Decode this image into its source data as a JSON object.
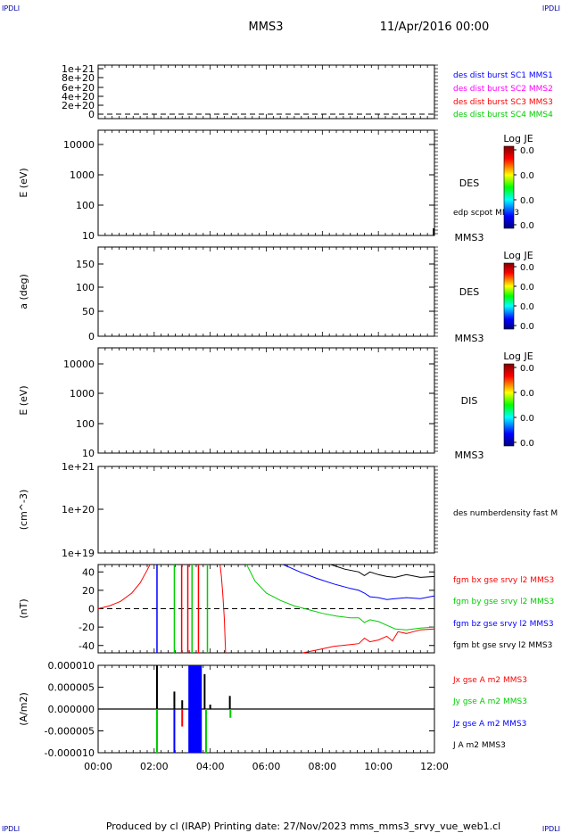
{
  "corner_labels": {
    "tl": "IPDLI",
    "tr": "IPDLI",
    "bl": "IPDLI",
    "br": "IPDLI"
  },
  "title": "MMS3",
  "date": "11/Apr/2016 00:00",
  "footer": "Produced by cl (IRAP)   Printing date: 27/Nov/2023   mms_mms3_srvy_vue_web1.cl",
  "colors": {
    "mms1": "#0000ff",
    "mms2": "#ff00ff",
    "mms3": "#ff0000",
    "mms4": "#00cc00",
    "black": "#000000"
  },
  "chart_data": [
    {
      "type": "line",
      "name": "panel-burst",
      "yticks": [
        "1e+21",
        "8e+20",
        "6e+20",
        "4e+20",
        "2e+20",
        "0"
      ],
      "legend": [
        "des dist burst SC1 MMS1",
        "des dist burst SC2 MMS2",
        "des dist burst SC3 MMS3",
        "des dist burst SC4 MMS4"
      ],
      "legend_colors": [
        "#0000ff",
        "#ff00ff",
        "#ff0000",
        "#00cc00"
      ]
    },
    {
      "type": "heatmap",
      "name": "panel-des-energy",
      "ylabel": "E (eV)",
      "yticks": [
        "10000",
        "1000",
        "100",
        "10"
      ],
      "side_label": "DES",
      "sc_label": "MMS3",
      "extra_label": "edp scpot MMS3",
      "colorbar": {
        "title": "Log JE",
        "ticks": [
          "0.0",
          "0.0",
          "0.0",
          "0.0"
        ]
      }
    },
    {
      "type": "heatmap",
      "name": "panel-des-pitch",
      "ylabel": "a (deg)",
      "yticks": [
        "150",
        "100",
        "50",
        "0"
      ],
      "side_label": "DES",
      "sc_label": "MMS3",
      "colorbar": {
        "title": "Log JE",
        "ticks": [
          "0.0",
          "0.0",
          "0.0",
          "0.0"
        ]
      }
    },
    {
      "type": "heatmap",
      "name": "panel-dis-energy",
      "ylabel": "E (eV)",
      "yticks": [
        "10000",
        "1000",
        "100",
        "10"
      ],
      "side_label": "DIS",
      "sc_label": "MMS3",
      "colorbar": {
        "title": "Log JE",
        "ticks": [
          "0.0",
          "0.0",
          "0.0",
          "0.0"
        ]
      }
    },
    {
      "type": "line",
      "name": "panel-density",
      "ylabel": "(cm^-3)",
      "yticks": [
        "1e+21",
        "1e+20",
        "1e+19"
      ],
      "legend": [
        "des numberdensity fast M"
      ]
    },
    {
      "type": "line",
      "name": "panel-fgm",
      "ylabel": "(nT)",
      "yticks": [
        "40",
        "20",
        "0",
        "-20",
        "-40"
      ],
      "ylim": [
        -48,
        48
      ],
      "xlim": [
        0,
        12
      ],
      "legend": [
        "fgm bx gse srvy l2 MMS3",
        "fgm by gse srvy l2 MMS3",
        "fgm bz gse srvy l2 MMS3",
        "fgm bt gse srvy l2 MMS3"
      ],
      "legend_colors": [
        "#ff0000",
        "#00cc00",
        "#0000ff",
        "#000000"
      ],
      "series": [
        {
          "color": "#ff0000",
          "points": [
            [
              0,
              0
            ],
            [
              0.4,
              3
            ],
            [
              0.8,
              8
            ],
            [
              1.2,
              17
            ],
            [
              1.5,
              28
            ],
            [
              1.75,
              42
            ],
            [
              1.85,
              48
            ]
          ]
        },
        {
          "color": "#ff0000",
          "points": [
            [
              4.35,
              48
            ],
            [
              4.4,
              35
            ],
            [
              4.45,
              15
            ],
            [
              4.5,
              -10
            ],
            [
              4.55,
              -48
            ]
          ]
        },
        {
          "color": "#00cc00",
          "points": [
            [
              5.3,
              48
            ],
            [
              5.6,
              30
            ],
            [
              6,
              17
            ],
            [
              6.5,
              9
            ],
            [
              7,
              3
            ],
            [
              7.5,
              -1
            ],
            [
              8,
              -5
            ],
            [
              8.5,
              -8
            ],
            [
              9,
              -10
            ],
            [
              9.3,
              -10
            ],
            [
              9.5,
              -15
            ],
            [
              9.7,
              -12
            ],
            [
              10,
              -14
            ],
            [
              10.3,
              -18
            ],
            [
              10.6,
              -22
            ],
            [
              11,
              -23
            ],
            [
              11.5,
              -21
            ],
            [
              12,
              -20
            ]
          ]
        },
        {
          "color": "#0000ff",
          "points": [
            [
              6.6,
              48
            ],
            [
              7.2,
              40
            ],
            [
              7.8,
              33
            ],
            [
              8.4,
              27
            ],
            [
              9,
              22
            ],
            [
              9.3,
              20
            ],
            [
              9.5,
              17
            ],
            [
              9.7,
              13
            ],
            [
              10,
              12
            ],
            [
              10.3,
              10
            ],
            [
              10.6,
              11
            ],
            [
              11,
              12
            ],
            [
              11.5,
              11
            ],
            [
              12,
              14
            ]
          ]
        },
        {
          "color": "#ff0000",
          "points": [
            [
              7.3,
              -48
            ],
            [
              7.8,
              -45
            ],
            [
              8.4,
              -41
            ],
            [
              9,
              -39
            ],
            [
              9.3,
              -38
            ],
            [
              9.5,
              -32
            ],
            [
              9.7,
              -36
            ],
            [
              10,
              -34
            ],
            [
              10.3,
              -30
            ],
            [
              10.5,
              -35
            ],
            [
              10.7,
              -25
            ],
            [
              11,
              -27
            ],
            [
              11.5,
              -23
            ],
            [
              12,
              -22
            ]
          ]
        },
        {
          "color": "#000000",
          "points": [
            [
              8.3,
              48
            ],
            [
              8.8,
              43
            ],
            [
              9.3,
              40
            ],
            [
              9.5,
              36
            ],
            [
              9.7,
              40
            ],
            [
              10,
              37
            ],
            [
              10.3,
              35
            ],
            [
              10.6,
              34
            ],
            [
              11,
              37
            ],
            [
              11.5,
              34
            ],
            [
              12,
              35
            ]
          ]
        }
      ],
      "vlines": [
        {
          "x": 2.1,
          "color": "#0000ff"
        },
        {
          "x": 2.72,
          "color": "#00cc00"
        },
        {
          "x": 2.98,
          "color": "#ff0000"
        },
        {
          "x": 3.2,
          "color": "#ff0000"
        },
        {
          "x": 3.35,
          "color": "#00cc00"
        },
        {
          "x": 3.58,
          "color": "#ff0000"
        },
        {
          "x": 3.9,
          "color": "#00cc00"
        }
      ]
    },
    {
      "type": "line",
      "name": "panel-current",
      "ylabel": "(A/m2)",
      "yticks": [
        "0.000010",
        "0.000005",
        "0.000000",
        "-0.000005",
        "-0.000010"
      ],
      "ylim": [
        -1e-05,
        1e-05
      ],
      "xlim": [
        0,
        12
      ],
      "xticks": [
        "00:00",
        "02:00",
        "04:00",
        "06:00",
        "08:00",
        "10:00",
        "12:00"
      ],
      "legend": [
        "Jx gse A m2 MMS3",
        "Jy gse A m2 MMS3",
        "Jz gse A m2 MMS3",
        "J A m2 MMS3"
      ],
      "legend_colors": [
        "#ff0000",
        "#00cc00",
        "#0000ff",
        "#000000"
      ],
      "blocks": [
        {
          "x0": 3.22,
          "x1": 3.7,
          "y0": -1e-05,
          "y1": 1e-05,
          "color": "#0000ff"
        }
      ],
      "spikes": [
        {
          "x": 2.1,
          "y": 1e-05,
          "color": "#000000"
        },
        {
          "x": 2.1,
          "y": -1e-05,
          "color": "#00cc00"
        },
        {
          "x": 2.72,
          "y": 4e-06,
          "color": "#000000"
        },
        {
          "x": 2.72,
          "y": -1e-05,
          "color": "#0000ff"
        },
        {
          "x": 3.0,
          "y": 2e-06,
          "color": "#000000"
        },
        {
          "x": 3.0,
          "y": -4e-06,
          "color": "#ff0000"
        },
        {
          "x": 3.8,
          "y": 8e-06,
          "color": "#000000"
        },
        {
          "x": 3.85,
          "y": -1e-05,
          "color": "#00cc00"
        },
        {
          "x": 4.0,
          "y": 1e-06,
          "color": "#000000"
        },
        {
          "x": 4.7,
          "y": 3e-06,
          "color": "#000000"
        },
        {
          "x": 4.72,
          "y": -2e-06,
          "color": "#00cc00"
        }
      ]
    }
  ]
}
